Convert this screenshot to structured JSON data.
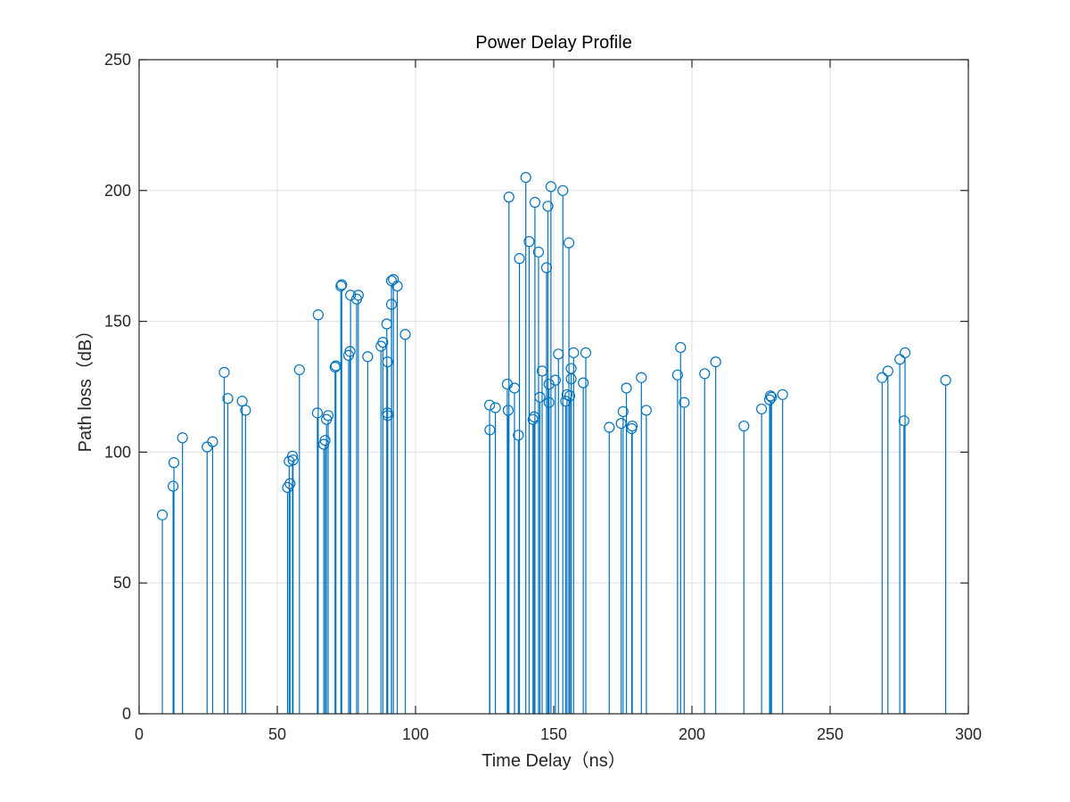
{
  "chart_data": {
    "type": "stem",
    "title": "Power Delay Profile",
    "xlabel": "Time Delay（ns）",
    "ylabel": "Path loss（dB）",
    "xlim": [
      0,
      300
    ],
    "ylim": [
      0,
      250
    ],
    "xticks": [
      0,
      50,
      100,
      150,
      200,
      250,
      300
    ],
    "yticks": [
      0,
      50,
      100,
      150,
      200,
      250
    ],
    "grid": true,
    "marker": "circle",
    "color": "#0072BD",
    "points": [
      [
        8.4,
        76
      ],
      [
        12.3,
        87
      ],
      [
        12.6,
        96
      ],
      [
        15.7,
        105.5
      ],
      [
        24.6,
        102
      ],
      [
        26.6,
        104
      ],
      [
        30.8,
        130.5
      ],
      [
        32.1,
        120.5
      ],
      [
        37.3,
        119.5
      ],
      [
        38.5,
        116
      ],
      [
        53.7,
        86.5
      ],
      [
        54.3,
        96.5
      ],
      [
        54.6,
        88
      ],
      [
        55.5,
        98.5
      ],
      [
        55.7,
        97
      ],
      [
        58.0,
        131.5
      ],
      [
        64.5,
        115
      ],
      [
        64.8,
        152.5
      ],
      [
        66.8,
        103
      ],
      [
        67.3,
        104.5
      ],
      [
        67.8,
        112.5
      ],
      [
        68.4,
        114
      ],
      [
        70.9,
        132.5
      ],
      [
        71.2,
        133
      ],
      [
        73.0,
        163.5
      ],
      [
        73.3,
        164
      ],
      [
        75.8,
        137
      ],
      [
        76.3,
        138.5
      ],
      [
        76.5,
        160
      ],
      [
        78.7,
        158.5
      ],
      [
        79.3,
        160
      ],
      [
        82.7,
        136.5
      ],
      [
        87.5,
        140.5
      ],
      [
        88.2,
        142
      ],
      [
        89.6,
        149
      ],
      [
        89.8,
        115
      ],
      [
        89.9,
        114
      ],
      [
        89.9,
        134.5
      ],
      [
        91.3,
        165.5
      ],
      [
        91.3,
        156.5
      ],
      [
        92.0,
        166
      ],
      [
        93.4,
        163.5
      ],
      [
        96.3,
        145
      ],
      [
        126.8,
        118
      ],
      [
        126.9,
        108.5
      ],
      [
        128.9,
        117
      ],
      [
        133.2,
        126
      ],
      [
        133.5,
        116
      ],
      [
        133.8,
        197.5
      ],
      [
        135.8,
        124.5
      ],
      [
        137.2,
        106.5
      ],
      [
        137.6,
        174
      ],
      [
        139.9,
        205
      ],
      [
        141.1,
        180.5
      ],
      [
        142.5,
        112.5
      ],
      [
        142.9,
        113.5
      ],
      [
        143.2,
        195.5
      ],
      [
        144.5,
        176.5
      ],
      [
        145.0,
        121
      ],
      [
        145.8,
        131
      ],
      [
        147.4,
        170.5
      ],
      [
        147.9,
        194
      ],
      [
        148.3,
        119
      ],
      [
        148.3,
        126
      ],
      [
        149.0,
        201.5
      ],
      [
        150.6,
        127.5
      ],
      [
        151.7,
        137.5
      ],
      [
        153.3,
        200
      ],
      [
        154.3,
        119.5
      ],
      [
        154.8,
        122
      ],
      [
        155.5,
        180
      ],
      [
        155.8,
        121.5
      ],
      [
        156.3,
        132
      ],
      [
        156.3,
        128
      ],
      [
        157.2,
        138
      ],
      [
        160.7,
        126.5
      ],
      [
        161.6,
        138
      ],
      [
        170.1,
        109.5
      ],
      [
        174.4,
        111
      ],
      [
        175.1,
        115.5
      ],
      [
        176.3,
        124.5
      ],
      [
        178.2,
        109
      ],
      [
        178.4,
        110
      ],
      [
        181.7,
        128.5
      ],
      [
        183.5,
        116
      ],
      [
        194.8,
        129.5
      ],
      [
        195.9,
        140
      ],
      [
        197.2,
        119
      ],
      [
        204.6,
        130
      ],
      [
        208.6,
        134.5
      ],
      [
        218.8,
        110
      ],
      [
        225.2,
        116.5
      ],
      [
        228.1,
        120
      ],
      [
        228.4,
        121.5
      ],
      [
        228.8,
        121
      ],
      [
        232.8,
        122
      ],
      [
        268.8,
        128.5
      ],
      [
        270.9,
        131
      ],
      [
        275.2,
        135.5
      ],
      [
        276.7,
        112
      ],
      [
        277.1,
        138
      ],
      [
        291.8,
        127.5
      ]
    ]
  }
}
